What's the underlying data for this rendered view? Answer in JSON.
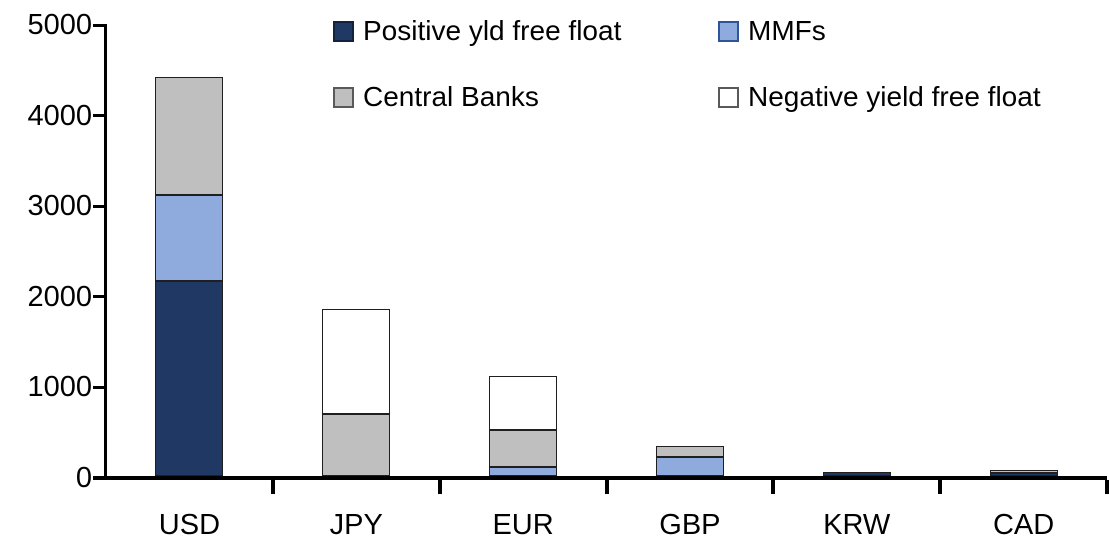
{
  "chart_data": {
    "type": "bar",
    "stacked": true,
    "title": "",
    "xlabel": "",
    "ylabel": "",
    "categories": [
      "USD",
      "JPY",
      "EUR",
      "GBP",
      "KRW",
      "CAD"
    ],
    "series": [
      {
        "name": "Positive yld free float",
        "color": "#1F3864",
        "legend_border": "#13233F",
        "values": [
          2150,
          0,
          0,
          0,
          40,
          35
        ]
      },
      {
        "name": "MMFs",
        "color": "#8FAADC",
        "legend_border": "#2E5597",
        "values": [
          950,
          0,
          100,
          210,
          0,
          0
        ]
      },
      {
        "name": "Central Banks",
        "color": "#BFBFBF",
        "legend_border": "#595959",
        "values": [
          1300,
          680,
          405,
          120,
          0,
          30
        ]
      },
      {
        "name": "Negative yield free float",
        "color": "#FFFFFF",
        "legend_border": "#595959",
        "values": [
          0,
          1160,
          595,
          0,
          0,
          0
        ]
      }
    ],
    "ylim": [
      0,
      5000
    ],
    "ytick_step": 1000,
    "yticks": [
      "0",
      "1000",
      "2000",
      "3000",
      "4000",
      "5000"
    ],
    "legend_position": "top",
    "legend_layout": "2x2",
    "grid": false,
    "bar_stroke": "#1F1F1F",
    "axis_color": "#000000",
    "text_color": "#000000",
    "background": "#FFFFFF"
  }
}
